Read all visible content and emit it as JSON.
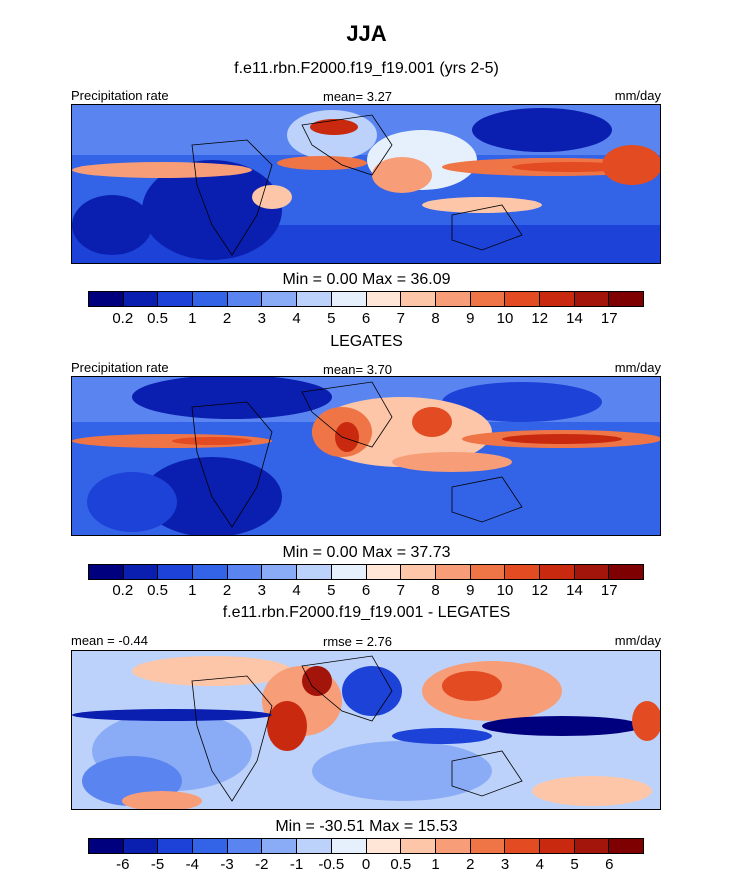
{
  "figure": {
    "title": "JJA",
    "panels": [
      {
        "id": "model",
        "subtitle": "f.e11.rbn.F2000.f19_f19.001 (yrs 2-5)",
        "left_label": "Precipitation rate",
        "center_label": "mean=   3.27",
        "right_label": "mm/day",
        "minmax": "Min =   0.00 Max =  36.09",
        "colorbar": {
          "colors": [
            "#00007f",
            "#0a1fb0",
            "#1d42d8",
            "#3364e8",
            "#5a85f0",
            "#8aabf5",
            "#bcd2fa",
            "#e6f0fd",
            "#ffe6d6",
            "#fdc6a9",
            "#f79d78",
            "#ef7547",
            "#e34b22",
            "#c92a0f",
            "#a3150a",
            "#7f0000"
          ],
          "ticks": [
            "0.2",
            "0.5",
            "1",
            "2",
            "3",
            "4",
            "5",
            "6",
            "7",
            "8",
            "9",
            "10",
            "12",
            "14",
            "17"
          ]
        }
      },
      {
        "id": "obs",
        "subtitle": "LEGATES",
        "left_label": "Precipitation rate",
        "center_label": "mean=   3.70",
        "right_label": "mm/day",
        "minmax": "Min =   0.00 Max =  37.73",
        "colorbar": {
          "colors": [
            "#00007f",
            "#0a1fb0",
            "#1d42d8",
            "#3364e8",
            "#5a85f0",
            "#8aabf5",
            "#bcd2fa",
            "#e6f0fd",
            "#ffe6d6",
            "#fdc6a9",
            "#f79d78",
            "#ef7547",
            "#e34b22",
            "#c92a0f",
            "#a3150a",
            "#7f0000"
          ],
          "ticks": [
            "0.2",
            "0.5",
            "1",
            "2",
            "3",
            "4",
            "5",
            "6",
            "7",
            "8",
            "9",
            "10",
            "12",
            "14",
            "17"
          ]
        }
      },
      {
        "id": "diff",
        "subtitle": "f.e11.rbn.F2000.f19_f19.001 - LEGATES",
        "left_label": "mean =  -0.44",
        "center_label": "rmse =   2.76",
        "right_label": "mm/day",
        "minmax": "Min = -30.51 Max =  15.53",
        "colorbar": {
          "colors": [
            "#00007f",
            "#0a1fb0",
            "#1d42d8",
            "#3364e8",
            "#5a85f0",
            "#8aabf5",
            "#bcd2fa",
            "#e6f0fd",
            "#ffe6d6",
            "#fdc6a9",
            "#f79d78",
            "#ef7547",
            "#e34b22",
            "#c92a0f",
            "#a3150a",
            "#7f0000"
          ],
          "ticks": [
            "-6",
            "-5",
            "-4",
            "-3",
            "-2",
            "-1",
            "-0.5",
            "0",
            "0.5",
            "1",
            "2",
            "3",
            "4",
            "5",
            "6"
          ]
        }
      }
    ]
  }
}
